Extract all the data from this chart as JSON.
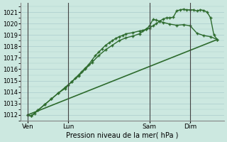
{
  "title": "",
  "xlabel": "Pression niveau de la mer( hPa )",
  "bg_color": "#cce8e0",
  "grid_color": "#aacccc",
  "line_color": "#2d6b2d",
  "ylim": [
    1011.5,
    1021.8
  ],
  "yticks": [
    1012,
    1013,
    1014,
    1015,
    1016,
    1017,
    1018,
    1019,
    1020,
    1021
  ],
  "xlim": [
    0,
    60
  ],
  "day_labels": [
    "Ven",
    "Lun",
    "Sam",
    "Dim"
  ],
  "day_positions": [
    2,
    14,
    38,
    50
  ],
  "vline_positions": [
    2,
    14,
    38,
    50
  ],
  "line1_x": [
    2,
    3,
    4,
    5,
    7,
    9,
    11,
    13,
    14,
    15,
    16,
    17,
    18,
    19,
    20,
    21,
    22,
    23,
    24,
    25,
    26,
    27,
    28,
    29,
    30,
    31,
    33,
    35,
    36,
    37,
    38,
    39,
    40,
    41,
    42,
    43,
    44,
    45,
    46,
    47,
    48,
    49,
    50,
    51,
    52,
    53,
    54,
    55,
    56,
    57,
    58
  ],
  "line1_y": [
    1012.0,
    1011.9,
    1012.1,
    1012.4,
    1012.9,
    1013.4,
    1013.9,
    1014.3,
    1014.6,
    1014.9,
    1015.2,
    1015.5,
    1015.8,
    1016.1,
    1016.4,
    1016.8,
    1017.2,
    1017.5,
    1017.8,
    1018.1,
    1018.3,
    1018.5,
    1018.7,
    1018.85,
    1018.95,
    1019.1,
    1019.2,
    1019.35,
    1019.4,
    1019.5,
    1019.6,
    1019.8,
    1020.0,
    1020.2,
    1020.4,
    1020.5,
    1020.5,
    1020.55,
    1021.1,
    1021.2,
    1021.25,
    1021.2,
    1021.2,
    1021.2,
    1021.1,
    1021.2,
    1021.15,
    1021.0,
    1020.5,
    1019.0,
    1018.6
  ],
  "line2_x": [
    2,
    3,
    5,
    7,
    9,
    11,
    13,
    15,
    17,
    19,
    21,
    23,
    25,
    27,
    29,
    31,
    33,
    35,
    37,
    38,
    39,
    40,
    41,
    42,
    44,
    46,
    48,
    50,
    52,
    54,
    56,
    58
  ],
  "line2_y": [
    1012.0,
    1011.9,
    1012.4,
    1012.9,
    1013.4,
    1013.9,
    1014.4,
    1014.9,
    1015.4,
    1016.0,
    1016.6,
    1017.2,
    1017.7,
    1018.1,
    1018.5,
    1018.75,
    1018.9,
    1019.1,
    1019.5,
    1019.8,
    1020.35,
    1020.3,
    1020.2,
    1020.1,
    1019.95,
    1019.85,
    1019.9,
    1019.8,
    1019.15,
    1018.95,
    1018.85,
    1018.6
  ],
  "line3_x": [
    2,
    58
  ],
  "line3_y": [
    1012.0,
    1018.6
  ]
}
